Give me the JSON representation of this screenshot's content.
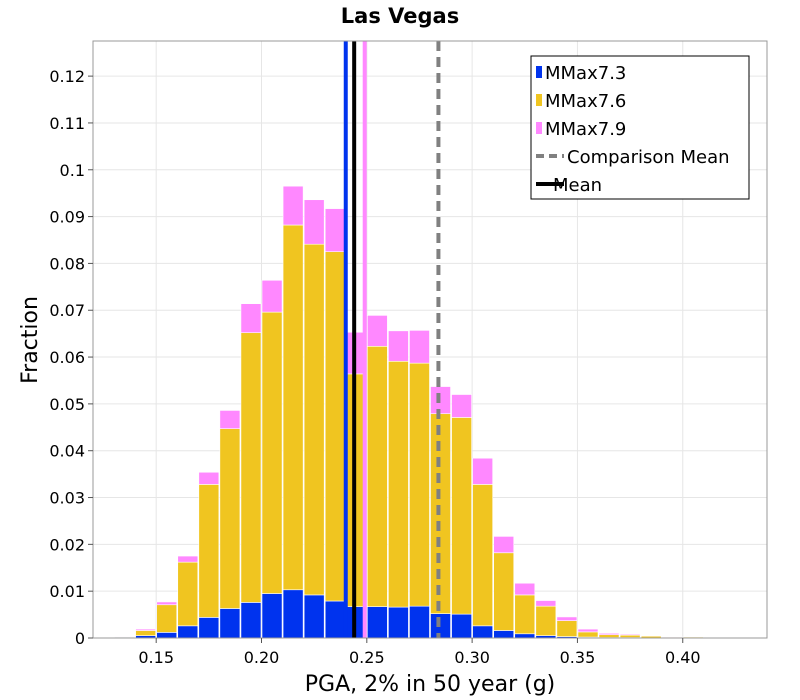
{
  "chart_data": {
    "type": "bar",
    "stacked": true,
    "title": "Las Vegas",
    "xlabel": "PGA, 2% in 50 year (g)",
    "ylabel": "Fraction",
    "xlim": [
      0.12,
      0.44
    ],
    "ylim": [
      0,
      0.1275
    ],
    "bin_width": 0.01,
    "x_ticks": [
      0.15,
      0.2,
      0.25,
      0.3,
      0.35,
      0.4
    ],
    "x_tick_labels": [
      "0.15",
      "0.20",
      "0.25",
      "0.30",
      "0.35",
      "0.40"
    ],
    "y_ticks": [
      0,
      0.01,
      0.02,
      0.03,
      0.04,
      0.05,
      0.06,
      0.07,
      0.08,
      0.09,
      0.1,
      0.11,
      0.12
    ],
    "y_tick_labels": [
      "0",
      "0.01",
      "0.02",
      "0.03",
      "0.04",
      "0.05",
      "0.06",
      "0.07",
      "0.08",
      "0.09",
      "0.1",
      "0.11",
      "0.12"
    ],
    "grid": true,
    "legend_position": "top-right",
    "bin_centers": [
      0.135,
      0.145,
      0.155,
      0.165,
      0.175,
      0.185,
      0.195,
      0.205,
      0.215,
      0.225,
      0.235,
      0.245,
      0.255,
      0.265,
      0.275,
      0.285,
      0.295,
      0.305,
      0.315,
      0.325,
      0.335,
      0.345,
      0.355,
      0.365,
      0.375,
      0.385,
      0.395,
      0.405,
      0.415,
      0.425
    ],
    "series": [
      {
        "name": "MMax7.3",
        "color": "#0033ee",
        "values": [
          0.0002,
          0.0005,
          0.0012,
          0.0026,
          0.0044,
          0.0063,
          0.0076,
          0.0095,
          0.0103,
          0.0092,
          0.0079,
          0.0067,
          0.0067,
          0.0066,
          0.0068,
          0.0052,
          0.0051,
          0.0026,
          0.0016,
          0.0009,
          0.0005,
          0.0003,
          0.0002,
          0.0001,
          0.0001,
          0,
          0,
          0,
          0,
          0
        ]
      },
      {
        "name": "MMax7.6",
        "color": "#f0c520",
        "values": [
          0.0001,
          0.0011,
          0.0059,
          0.0136,
          0.0284,
          0.0384,
          0.0576,
          0.0601,
          0.0779,
          0.0749,
          0.0746,
          0.0497,
          0.0556,
          0.0525,
          0.0519,
          0.0427,
          0.042,
          0.0302,
          0.0166,
          0.0083,
          0.0063,
          0.0034,
          0.0011,
          0.0006,
          0.0005,
          0.0004,
          0.0002,
          0.0002,
          0.0001,
          0.0001
        ]
      },
      {
        "name": "MMax7.9",
        "color": "#ff88ff",
        "values": [
          0.0001,
          0.0003,
          0.0006,
          0.0013,
          0.0026,
          0.0039,
          0.0062,
          0.0068,
          0.0083,
          0.0095,
          0.0092,
          0.0089,
          0.0066,
          0.0065,
          0.007,
          0.0058,
          0.0049,
          0.0056,
          0.0035,
          0.0025,
          0.0012,
          0.0008,
          0.0006,
          0.0003,
          0.0002,
          0.0001,
          0.0001,
          0,
          0,
          0
        ]
      }
    ],
    "vertical_lines": [
      {
        "name": "MMax7.3 mean",
        "x": 0.24,
        "color": "#0033ee",
        "style": "solid"
      },
      {
        "name": "MMax7.9 mean",
        "x": 0.249,
        "color": "#ff88ff",
        "style": "solid"
      },
      {
        "name": "Mean",
        "x": 0.244,
        "color": "#000000",
        "style": "solid"
      },
      {
        "name": "Comparison Mean",
        "x": 0.284,
        "color": "#808080",
        "style": "dashed"
      }
    ],
    "legend": [
      {
        "label": "MMax7.3",
        "kind": "patch",
        "color": "#0033ee"
      },
      {
        "label": "MMax7.6",
        "kind": "patch",
        "color": "#f0c520"
      },
      {
        "label": "MMax7.9",
        "kind": "patch",
        "color": "#ff88ff"
      },
      {
        "label": "Comparison Mean",
        "kind": "dashed-line",
        "color": "#808080"
      },
      {
        "label": "Mean",
        "kind": "line",
        "color": "#000000"
      }
    ]
  }
}
